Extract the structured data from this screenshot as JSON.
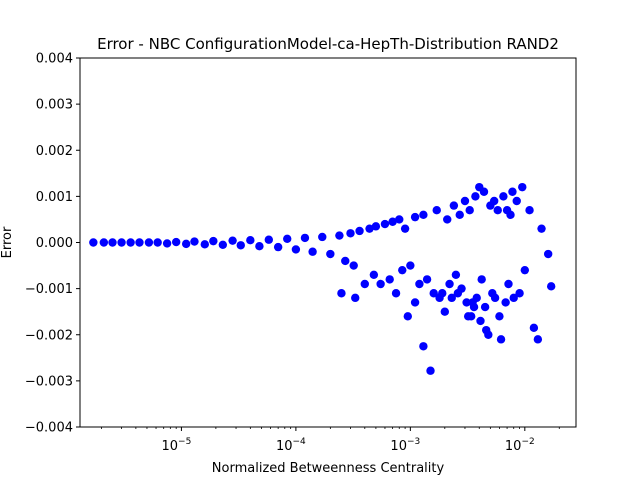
{
  "chart_data": {
    "type": "scatter",
    "title": "Error - NBC ConfigurationModel-ca-HepTh-Distribution RAND2",
    "xlabel": "Normalized Betweenness Centrality",
    "ylabel": "Error",
    "xscale": "log",
    "xlim": [
      1.3e-06,
      0.028
    ],
    "ylim": [
      -0.004,
      0.004
    ],
    "x_ticks": [
      {
        "value": 1e-05,
        "base": "10",
        "exp": "−5"
      },
      {
        "value": 0.0001,
        "base": "10",
        "exp": "−4"
      },
      {
        "value": 0.001,
        "base": "10",
        "exp": "−3"
      },
      {
        "value": 0.01,
        "base": "10",
        "exp": "−2"
      }
    ],
    "y_ticks": [
      {
        "value": -0.004,
        "label": "−0.004"
      },
      {
        "value": -0.003,
        "label": "−0.003"
      },
      {
        "value": -0.002,
        "label": "−0.002"
      },
      {
        "value": -0.001,
        "label": "−0.001"
      },
      {
        "value": 0.0,
        "label": "0.000"
      },
      {
        "value": 0.001,
        "label": "0.001"
      },
      {
        "value": 0.002,
        "label": "0.002"
      },
      {
        "value": 0.003,
        "label": "0.003"
      },
      {
        "value": 0.004,
        "label": "0.004"
      }
    ],
    "grid": false,
    "color": "#0000ff",
    "series": [
      {
        "name": "",
        "x": [
          1.7e-06,
          2.1e-06,
          2.5e-06,
          3e-06,
          3.6e-06,
          4.3e-06,
          5.2e-06,
          6.2e-06,
          7.5e-06,
          9e-06,
          1.1e-05,
          1.3e-05,
          1.6e-05,
          1.9e-05,
          2.3e-05,
          2.8e-05,
          3.3e-05,
          4e-05,
          4.8e-05,
          5.8e-05,
          7e-05,
          8.4e-05,
          0.0001,
          0.00012,
          0.00014,
          0.00017,
          0.0002,
          0.00024,
          0.00025,
          0.00027,
          0.0003,
          0.00032,
          0.00033,
          0.00036,
          0.0004,
          0.00044,
          0.00048,
          0.0005,
          0.00055,
          0.0006,
          0.00066,
          0.0007,
          0.00075,
          0.0008,
          0.00085,
          0.0009,
          0.00095,
          0.001,
          0.0011,
          0.0011,
          0.0012,
          0.0013,
          0.0013,
          0.0014,
          0.0015,
          0.0016,
          0.0017,
          0.0018,
          0.0019,
          0.002,
          0.0021,
          0.0022,
          0.0023,
          0.0024,
          0.0025,
          0.0026,
          0.0027,
          0.0028,
          0.003,
          0.0031,
          0.0032,
          0.0033,
          0.0034,
          0.0035,
          0.0036,
          0.0037,
          0.0038,
          0.004,
          0.0041,
          0.0042,
          0.0044,
          0.0045,
          0.0046,
          0.0048,
          0.005,
          0.0052,
          0.0054,
          0.0055,
          0.0058,
          0.006,
          0.0062,
          0.0065,
          0.0068,
          0.007,
          0.0072,
          0.0075,
          0.0078,
          0.008,
          0.0085,
          0.009,
          0.0095,
          0.01,
          0.011,
          0.012,
          0.013,
          0.014,
          0.016,
          0.017
        ],
        "y": [
          0.0,
          0.0,
          0.0,
          0.0,
          0.0,
          0.0,
          0.0,
          0.0,
          -2e-05,
          1e-05,
          -3e-05,
          2e-05,
          -4e-05,
          3e-05,
          -5e-05,
          4e-05,
          -6e-05,
          5e-05,
          -8e-05,
          6e-05,
          -0.0001,
          8e-05,
          -0.00015,
          0.0001,
          -0.0002,
          0.00012,
          -0.00025,
          0.00015,
          -0.0011,
          -0.0004,
          0.0002,
          -0.0005,
          -0.0012,
          0.00025,
          -0.0009,
          0.0003,
          -0.0007,
          0.00035,
          -0.0009,
          0.0004,
          -0.0008,
          0.00045,
          -0.0011,
          0.0005,
          -0.0006,
          0.0003,
          -0.0016,
          -0.0005,
          0.00055,
          -0.0013,
          -0.0009,
          -0.00225,
          0.0006,
          -0.0008,
          -0.00278,
          -0.0011,
          0.0007,
          -0.0012,
          -0.0011,
          -0.0015,
          0.0005,
          -0.0009,
          -0.0012,
          0.0008,
          -0.0007,
          -0.0011,
          0.0006,
          -0.001,
          0.0009,
          -0.0013,
          -0.0016,
          0.0007,
          -0.0016,
          -0.0013,
          -0.0014,
          0.001,
          -0.0012,
          0.0012,
          -0.0017,
          -0.0008,
          0.0011,
          -0.0014,
          -0.0019,
          -0.002,
          0.0008,
          -0.0011,
          0.0009,
          -0.0012,
          0.0007,
          -0.0016,
          -0.0021,
          0.001,
          -0.0013,
          0.0007,
          -0.0009,
          0.0006,
          0.0011,
          -0.0012,
          0.0009,
          -0.0011,
          0.0012,
          -0.0006,
          0.0007,
          -0.00185,
          -0.0021,
          0.0003,
          -0.00025,
          -0.00095
        ]
      }
    ]
  }
}
